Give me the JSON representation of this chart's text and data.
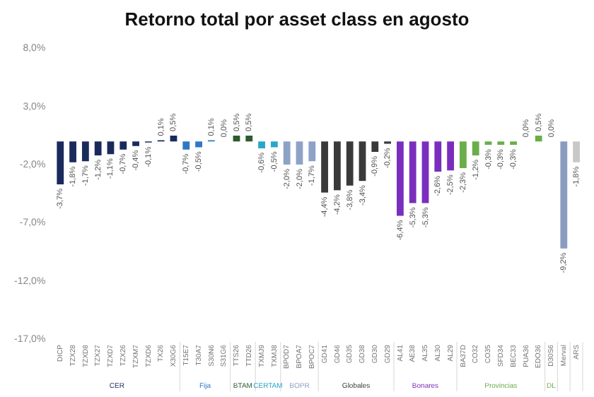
{
  "chart_data": {
    "type": "bar",
    "title": "Retorno total por asset class en agosto",
    "categories": [
      "DICP",
      "TZX28",
      "TZXD8",
      "TZX27",
      "TZXD7",
      "TZX26",
      "TZXM7",
      "TZXD6",
      "TX26",
      "X30G6",
      "T15E7",
      "T30A7",
      "S30N6",
      "S31G6",
      "TTS26",
      "TTD26",
      "TXMJ9",
      "TXMJ8",
      "BPOD7",
      "BPOA7",
      "BPOC7",
      "GD41",
      "GD46",
      "GD35",
      "GD38",
      "GD30",
      "GD29",
      "AL41",
      "AE38",
      "AL35",
      "AL30",
      "AL29",
      "BA37D",
      "CO32",
      "CO35",
      "SFD34",
      "BEC33",
      "PUA36",
      "EDO36",
      "D30S6",
      "Merval",
      "ARS"
    ],
    "stacked": true,
    "ylim": [
      -17,
      8
    ],
    "grid": false,
    "legend": false,
    "yticks": [
      {
        "value": 8,
        "label": "8,0%"
      },
      {
        "value": 3,
        "label": "3,0%"
      },
      {
        "value": -2,
        "label": "-2,0%"
      },
      {
        "value": -7,
        "label": "-7,0%"
      },
      {
        "value": -12,
        "label": "-12,0%"
      },
      {
        "value": -17,
        "label": "-17,0%"
      }
    ],
    "series": [
      {
        "name": "CER",
        "color": "#1b2a5c",
        "values": [
          -3.7,
          -1.8,
          -1.7,
          -1.2,
          -1.1,
          -0.7,
          -0.4,
          -0.1,
          0.1,
          0.5,
          null,
          null,
          null,
          null,
          null,
          null,
          null,
          null,
          null,
          null,
          null,
          null,
          null,
          null,
          null,
          null,
          null,
          null,
          null,
          null,
          null,
          null,
          null,
          null,
          null,
          null,
          null,
          null,
          null,
          null,
          null,
          null
        ],
        "value_labels": [
          "-3,7%",
          "-1,8%",
          "-1,7%",
          "-1,2%",
          "-1,1%",
          "-0,7%",
          "-0,4%",
          "-0,1%",
          "0,1%",
          "0,5%",
          null,
          null,
          null,
          null,
          null,
          null,
          null,
          null,
          null,
          null,
          null,
          null,
          null,
          null,
          null,
          null,
          null,
          null,
          null,
          null,
          null,
          null,
          null,
          null,
          null,
          null,
          null,
          null,
          null,
          null,
          null,
          null
        ]
      },
      {
        "name": "Fija",
        "color": "#2f78c4",
        "values": [
          null,
          null,
          null,
          null,
          null,
          null,
          null,
          null,
          null,
          null,
          -0.7,
          -0.5,
          0.1,
          0.0,
          null,
          null,
          null,
          null,
          null,
          null,
          null,
          null,
          null,
          null,
          null,
          null,
          null,
          null,
          null,
          null,
          null,
          null,
          null,
          null,
          null,
          null,
          null,
          null,
          null,
          null,
          null,
          null
        ],
        "value_labels": [
          null,
          null,
          null,
          null,
          null,
          null,
          null,
          null,
          null,
          null,
          "-0,7%",
          "-0,5%",
          "0,1%",
          "0,0%",
          null,
          null,
          null,
          null,
          null,
          null,
          null,
          null,
          null,
          null,
          null,
          null,
          null,
          null,
          null,
          null,
          null,
          null,
          null,
          null,
          null,
          null,
          null,
          null,
          null,
          null,
          null,
          null
        ]
      },
      {
        "name": "BTAM",
        "color": "#2e5a2e",
        "values": [
          null,
          null,
          null,
          null,
          null,
          null,
          null,
          null,
          null,
          null,
          null,
          null,
          null,
          null,
          0.5,
          0.5,
          null,
          null,
          null,
          null,
          null,
          null,
          null,
          null,
          null,
          null,
          null,
          null,
          null,
          null,
          null,
          null,
          null,
          null,
          null,
          null,
          null,
          null,
          null,
          null,
          null,
          null
        ],
        "value_labels": [
          null,
          null,
          null,
          null,
          null,
          null,
          null,
          null,
          null,
          null,
          null,
          null,
          null,
          null,
          "0,5%",
          "0,5%",
          null,
          null,
          null,
          null,
          null,
          null,
          null,
          null,
          null,
          null,
          null,
          null,
          null,
          null,
          null,
          null,
          null,
          null,
          null,
          null,
          null,
          null,
          null,
          null,
          null,
          null
        ]
      },
      {
        "name": "CERTAM",
        "color": "#27a7c9",
        "values": [
          null,
          null,
          null,
          null,
          null,
          null,
          null,
          null,
          null,
          null,
          null,
          null,
          null,
          null,
          null,
          null,
          -0.6,
          -0.5,
          null,
          null,
          null,
          null,
          null,
          null,
          null,
          null,
          null,
          null,
          null,
          null,
          null,
          null,
          null,
          null,
          null,
          null,
          null,
          null,
          null,
          null,
          null,
          null
        ],
        "value_labels": [
          null,
          null,
          null,
          null,
          null,
          null,
          null,
          null,
          null,
          null,
          null,
          null,
          null,
          null,
          null,
          null,
          "-0,6%",
          "-0,5%",
          null,
          null,
          null,
          null,
          null,
          null,
          null,
          null,
          null,
          null,
          null,
          null,
          null,
          null,
          null,
          null,
          null,
          null,
          null,
          null,
          null,
          null,
          null,
          null
        ]
      },
      {
        "name": "BOPR",
        "color": "#8ea2c6",
        "values": [
          null,
          null,
          null,
          null,
          null,
          null,
          null,
          null,
          null,
          null,
          null,
          null,
          null,
          null,
          null,
          null,
          null,
          null,
          -2.0,
          -2.0,
          -1.7,
          null,
          null,
          null,
          null,
          null,
          null,
          null,
          null,
          null,
          null,
          null,
          null,
          null,
          null,
          null,
          null,
          null,
          null,
          null,
          null,
          null
        ],
        "value_labels": [
          null,
          null,
          null,
          null,
          null,
          null,
          null,
          null,
          null,
          null,
          null,
          null,
          null,
          null,
          null,
          null,
          null,
          null,
          "-2,0%",
          "-2,0%",
          "-1,7%",
          null,
          null,
          null,
          null,
          null,
          null,
          null,
          null,
          null,
          null,
          null,
          null,
          null,
          null,
          null,
          null,
          null,
          null,
          null,
          null,
          null
        ]
      },
      {
        "name": "Globales",
        "color": "#3a3a3a",
        "values": [
          null,
          null,
          null,
          null,
          null,
          null,
          null,
          null,
          null,
          null,
          null,
          null,
          null,
          null,
          null,
          null,
          null,
          null,
          null,
          null,
          null,
          -4.4,
          -4.2,
          -3.8,
          -3.4,
          -0.9,
          -0.2,
          null,
          null,
          null,
          null,
          null,
          null,
          null,
          null,
          null,
          null,
          null,
          null,
          null,
          null,
          null
        ],
        "value_labels": [
          null,
          null,
          null,
          null,
          null,
          null,
          null,
          null,
          null,
          null,
          null,
          null,
          null,
          null,
          null,
          null,
          null,
          null,
          null,
          null,
          null,
          "-4,4%",
          "-4,2%",
          "-3,8%",
          "-3,4%",
          "-0,9%",
          "-0,2%",
          null,
          null,
          null,
          null,
          null,
          null,
          null,
          null,
          null,
          null,
          null,
          null,
          null,
          null,
          null
        ]
      },
      {
        "name": "Bonares",
        "color": "#7a2ebd",
        "values": [
          null,
          null,
          null,
          null,
          null,
          null,
          null,
          null,
          null,
          null,
          null,
          null,
          null,
          null,
          null,
          null,
          null,
          null,
          null,
          null,
          null,
          null,
          null,
          null,
          null,
          null,
          null,
          -6.4,
          -5.3,
          -5.3,
          -2.6,
          -2.5,
          null,
          null,
          null,
          null,
          null,
          null,
          null,
          null,
          null,
          null
        ],
        "value_labels": [
          null,
          null,
          null,
          null,
          null,
          null,
          null,
          null,
          null,
          null,
          null,
          null,
          null,
          null,
          null,
          null,
          null,
          null,
          null,
          null,
          null,
          null,
          null,
          null,
          null,
          null,
          null,
          "-6,4%",
          "-5,3%",
          "-5,3%",
          "-2,6%",
          "-2,5%",
          null,
          null,
          null,
          null,
          null,
          null,
          null,
          null,
          null,
          null
        ]
      },
      {
        "name": "Provincias",
        "color": "#6aae4a",
        "values": [
          null,
          null,
          null,
          null,
          null,
          null,
          null,
          null,
          null,
          null,
          null,
          null,
          null,
          null,
          null,
          null,
          null,
          null,
          null,
          null,
          null,
          null,
          null,
          null,
          null,
          null,
          null,
          null,
          null,
          null,
          null,
          null,
          -2.3,
          -1.2,
          -0.3,
          -0.3,
          -0.3,
          0.0,
          0.5,
          null,
          null,
          null
        ],
        "value_labels": [
          null,
          null,
          null,
          null,
          null,
          null,
          null,
          null,
          null,
          null,
          null,
          null,
          null,
          null,
          null,
          null,
          null,
          null,
          null,
          null,
          null,
          null,
          null,
          null,
          null,
          null,
          null,
          null,
          null,
          null,
          null,
          null,
          "-2,3%",
          "-1,2%",
          "-0,3%",
          "-0,3%",
          "-0,3%",
          "0,0%",
          "0,5%",
          null,
          null,
          null
        ]
      },
      {
        "name": "DL",
        "color": "#6aae4a",
        "values": [
          null,
          null,
          null,
          null,
          null,
          null,
          null,
          null,
          null,
          null,
          null,
          null,
          null,
          null,
          null,
          null,
          null,
          null,
          null,
          null,
          null,
          null,
          null,
          null,
          null,
          null,
          null,
          null,
          null,
          null,
          null,
          null,
          null,
          null,
          null,
          null,
          null,
          null,
          null,
          0.0,
          null,
          null
        ],
        "value_labels": [
          null,
          null,
          null,
          null,
          null,
          null,
          null,
          null,
          null,
          null,
          null,
          null,
          null,
          null,
          null,
          null,
          null,
          null,
          null,
          null,
          null,
          null,
          null,
          null,
          null,
          null,
          null,
          null,
          null,
          null,
          null,
          null,
          null,
          null,
          null,
          null,
          null,
          null,
          null,
          "0,0%",
          null,
          null
        ]
      },
      {
        "color": "#8a9cc0",
        "values": [
          null,
          null,
          null,
          null,
          null,
          null,
          null,
          null,
          null,
          null,
          null,
          null,
          null,
          null,
          null,
          null,
          null,
          null,
          null,
          null,
          null,
          null,
          null,
          null,
          null,
          null,
          null,
          null,
          null,
          null,
          null,
          null,
          null,
          null,
          null,
          null,
          null,
          null,
          null,
          null,
          -9.2,
          null
        ],
        "value_labels": [
          null,
          null,
          null,
          null,
          null,
          null,
          null,
          null,
          null,
          null,
          null,
          null,
          null,
          null,
          null,
          null,
          null,
          null,
          null,
          null,
          null,
          null,
          null,
          null,
          null,
          null,
          null,
          null,
          null,
          null,
          null,
          null,
          null,
          null,
          null,
          null,
          null,
          null,
          null,
          null,
          "-9,2%",
          null
        ]
      },
      {
        "color": "#c8c8c8",
        "values": [
          null,
          null,
          null,
          null,
          null,
          null,
          null,
          null,
          null,
          null,
          null,
          null,
          null,
          null,
          null,
          null,
          null,
          null,
          null,
          null,
          null,
          null,
          null,
          null,
          null,
          null,
          null,
          null,
          null,
          null,
          null,
          null,
          null,
          null,
          null,
          null,
          null,
          null,
          null,
          null,
          null,
          -1.8
        ],
        "value_labels": [
          null,
          null,
          null,
          null,
          null,
          null,
          null,
          null,
          null,
          null,
          null,
          null,
          null,
          null,
          null,
          null,
          null,
          null,
          null,
          null,
          null,
          null,
          null,
          null,
          null,
          null,
          null,
          null,
          null,
          null,
          null,
          null,
          null,
          null,
          null,
          null,
          null,
          null,
          null,
          null,
          null,
          "-1,8%"
        ]
      }
    ]
  }
}
